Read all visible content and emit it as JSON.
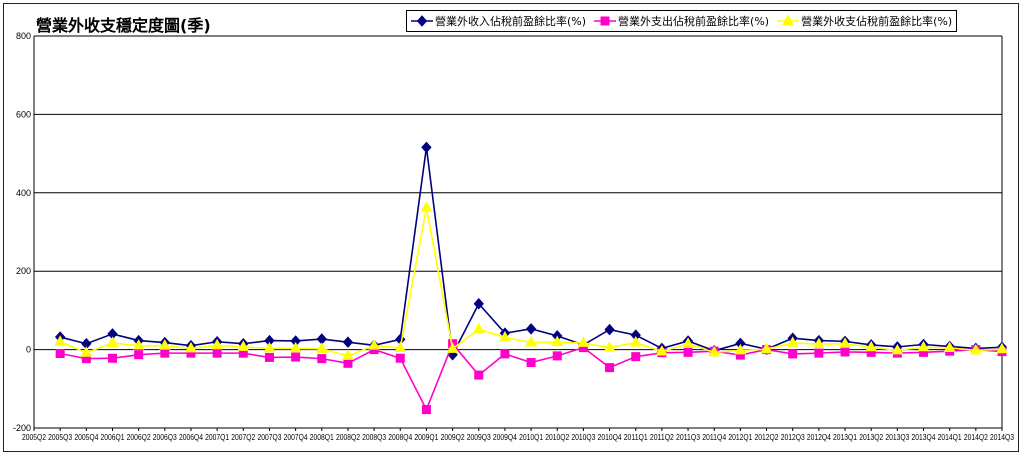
{
  "chart_data": {
    "type": "line",
    "title": "營業外收支穩定度圖(季)",
    "xlabel": "",
    "ylabel": "",
    "ylim": [
      -200,
      800
    ],
    "yticks": [
      -200,
      0,
      200,
      400,
      600,
      800
    ],
    "grid": true,
    "legend_position": "top-right",
    "categories": [
      "2005Q2",
      "2005Q3",
      "2005Q4",
      "2006Q1",
      "2006Q2",
      "2006Q3",
      "2006Q4",
      "2007Q1",
      "2007Q2",
      "2007Q3",
      "2007Q4",
      "2008Q1",
      "2008Q2",
      "2008Q3",
      "2008Q4",
      "2009Q1",
      "2009Q2",
      "2009Q3",
      "2009Q4",
      "2010Q1",
      "2010Q2",
      "2010Q3",
      "2010Q4",
      "2011Q1",
      "2011Q2",
      "2011Q3",
      "2011Q4",
      "2012Q1",
      "2012Q2",
      "2012Q3",
      "2012Q4",
      "2013Q1",
      "2013Q2",
      "2013Q3",
      "2013Q4",
      "2014Q1",
      "2014Q2",
      "2014Q3"
    ],
    "series": [
      {
        "name": "營業外收入佔稅前盈餘比率(%)",
        "color": "#000080",
        "marker": "diamond",
        "values": [
          null,
          32,
          15,
          40,
          23,
          18,
          10,
          20,
          15,
          23,
          22,
          27,
          19,
          11,
          26,
          516,
          -13,
          117,
          42,
          53,
          35,
          12,
          51,
          37,
          3,
          22,
          -3,
          16,
          1,
          29,
          23,
          21,
          12,
          7,
          13,
          8,
          3,
          6
        ]
      },
      {
        "name": "營業外支出佔稅前盈餘比率(%)",
        "color": "#ff00cc",
        "marker": "square",
        "values": [
          null,
          -10,
          -23,
          -22,
          -13,
          -9,
          -9,
          -9,
          -9,
          -20,
          -19,
          -23,
          -35,
          0,
          -22,
          -153,
          15,
          -65,
          -11,
          -33,
          -16,
          5,
          -46,
          -18,
          -8,
          -7,
          -4,
          -14,
          0,
          -11,
          -9,
          -6,
          -7,
          -9,
          -7,
          -4,
          0,
          -5
        ]
      },
      {
        "name": "營業外收支佔稅前盈餘比率(%)",
        "color": "#ffff00",
        "marker": "triangle",
        "values": [
          null,
          20,
          -8,
          17,
          10,
          10,
          3,
          11,
          7,
          3,
          3,
          2,
          -16,
          10,
          4,
          362,
          2,
          52,
          31,
          18,
          19,
          17,
          5,
          18,
          -5,
          15,
          -7,
          -2,
          1,
          17,
          14,
          15,
          6,
          -2,
          6,
          4,
          -2,
          1
        ]
      }
    ]
  }
}
